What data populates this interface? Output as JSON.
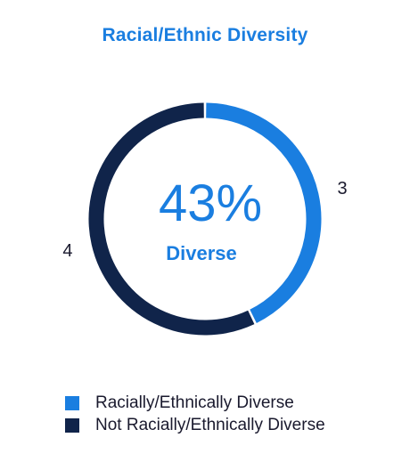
{
  "chart_data": {
    "type": "pie",
    "variant": "donut",
    "title": "Racial/Ethnic Diversity",
    "center_value": "43%",
    "center_label": "Diverse",
    "categories": [
      "Racially/Ethnically Diverse",
      "Not Racially/Ethnically Diverse"
    ],
    "values": [
      3,
      4
    ],
    "data_labels": [
      "3",
      "4"
    ],
    "colors": [
      "#1a7ee0",
      "#10244a"
    ],
    "legend_position": "bottom"
  },
  "colors": {
    "title": "#1a7ee0",
    "center_text": "#1a7ee0",
    "label_text": "#1a1a2e"
  }
}
